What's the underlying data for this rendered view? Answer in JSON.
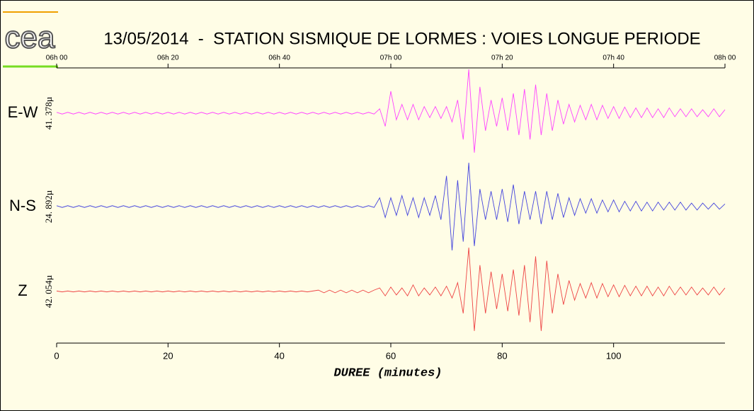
{
  "logo": "cea",
  "chart_data": {
    "type": "line",
    "title": "13/05/2014  -  STATION SISMIQUE DE LORMES : VOIES LONGUE PERIODE",
    "xlabel": "DUREE (minutes)",
    "xlim": [
      0,
      120
    ],
    "xticks": [
      0,
      20,
      40,
      60,
      80,
      100
    ],
    "x2ticks": [
      {
        "value": 0,
        "label": "06h 00"
      },
      {
        "value": 20,
        "label": "06h 20"
      },
      {
        "value": 40,
        "label": "06h 40"
      },
      {
        "value": 60,
        "label": "07h 00"
      },
      {
        "value": 80,
        "label": "07h 20"
      },
      {
        "value": 100,
        "label": "07h 40"
      },
      {
        "value": 120,
        "label": "08h 00"
      }
    ],
    "ylim": [
      -1,
      1
    ],
    "x": [
      0,
      1,
      2,
      3,
      4,
      5,
      6,
      7,
      8,
      9,
      10,
      11,
      12,
      13,
      14,
      15,
      16,
      17,
      18,
      19,
      20,
      21,
      22,
      23,
      24,
      25,
      26,
      27,
      28,
      29,
      30,
      31,
      32,
      33,
      34,
      35,
      36,
      37,
      38,
      39,
      40,
      41,
      42,
      43,
      44,
      45,
      46,
      47,
      48,
      49,
      50,
      51,
      52,
      53,
      54,
      55,
      56,
      57,
      58,
      59,
      60,
      61,
      62,
      63,
      64,
      65,
      66,
      67,
      68,
      69,
      70,
      71,
      72,
      73,
      74,
      75,
      76,
      77,
      78,
      79,
      80,
      81,
      82,
      83,
      84,
      85,
      86,
      87,
      88,
      89,
      90,
      91,
      92,
      93,
      94,
      95,
      96,
      97,
      98,
      99,
      100,
      101,
      102,
      103,
      104,
      105,
      106,
      107,
      108,
      109,
      110,
      111,
      112,
      113,
      114,
      115,
      116,
      117,
      118,
      119,
      120
    ],
    "series": [
      {
        "name": "E-W",
        "scale_label": "41. 378µ",
        "color": "#ff44ff",
        "values": [
          0.02,
          -0.02,
          0.02,
          -0.02,
          0.02,
          -0.02,
          0.02,
          -0.02,
          0.02,
          -0.02,
          0.02,
          -0.02,
          0.02,
          -0.02,
          0.02,
          -0.02,
          0.02,
          -0.02,
          0.02,
          -0.02,
          0.02,
          -0.02,
          0.02,
          -0.02,
          0.02,
          -0.02,
          0.02,
          -0.02,
          0.02,
          -0.02,
          0.02,
          -0.02,
          0.02,
          -0.02,
          0.02,
          -0.02,
          0.02,
          -0.02,
          0.02,
          -0.02,
          0.02,
          -0.02,
          0.02,
          -0.02,
          0.02,
          -0.02,
          0.02,
          -0.02,
          0.02,
          -0.02,
          0.02,
          -0.02,
          0.02,
          -0.02,
          0.02,
          -0.02,
          0.02,
          -0.02,
          0.1,
          -0.3,
          0.5,
          -0.15,
          0.2,
          -0.15,
          0.2,
          -0.15,
          0.15,
          -0.1,
          0.15,
          -0.12,
          0.15,
          -0.2,
          0.3,
          -0.6,
          1.0,
          -0.9,
          0.6,
          -0.4,
          0.3,
          -0.3,
          0.35,
          -0.4,
          0.45,
          -0.5,
          0.55,
          -0.6,
          0.65,
          -0.5,
          0.45,
          -0.4,
          0.3,
          -0.25,
          0.2,
          -0.2,
          0.18,
          -0.15,
          0.2,
          -0.15,
          0.18,
          -0.12,
          0.15,
          -0.12,
          0.14,
          -0.1,
          0.12,
          -0.1,
          0.12,
          -0.1,
          0.1,
          -0.1,
          0.12,
          -0.08,
          0.1,
          -0.08,
          0.1,
          -0.08,
          0.08,
          -0.08,
          0.1,
          -0.08,
          0.08
        ]
      },
      {
        "name": "N-S",
        "scale_label": "24. 892µ",
        "color": "#4444dd",
        "values": [
          0.02,
          -0.02,
          0.02,
          -0.02,
          0.02,
          -0.02,
          0.02,
          -0.02,
          0.02,
          -0.02,
          0.02,
          -0.02,
          0.02,
          -0.02,
          0.02,
          -0.02,
          0.02,
          -0.02,
          0.02,
          -0.02,
          0.02,
          -0.02,
          0.02,
          -0.02,
          0.02,
          -0.02,
          0.02,
          -0.02,
          0.02,
          -0.02,
          0.02,
          -0.02,
          0.02,
          -0.02,
          0.02,
          -0.02,
          0.02,
          -0.02,
          0.02,
          -0.02,
          0.02,
          -0.02,
          0.02,
          -0.02,
          0.02,
          -0.02,
          0.02,
          -0.02,
          0.02,
          -0.02,
          0.02,
          -0.02,
          0.02,
          -0.02,
          0.02,
          -0.02,
          0.02,
          -0.02,
          0.2,
          -0.25,
          0.2,
          -0.2,
          0.25,
          -0.2,
          0.2,
          -0.25,
          0.2,
          -0.2,
          0.25,
          -0.3,
          0.7,
          -1.0,
          0.6,
          -0.8,
          1.0,
          -0.9,
          0.4,
          -0.3,
          0.35,
          -0.3,
          0.4,
          -0.35,
          0.5,
          -0.4,
          0.35,
          -0.3,
          0.35,
          -0.4,
          0.35,
          -0.3,
          0.3,
          -0.25,
          0.2,
          -0.2,
          0.18,
          -0.15,
          0.18,
          -0.15,
          0.15,
          -0.12,
          0.15,
          -0.12,
          0.12,
          -0.1,
          0.12,
          -0.1,
          0.1,
          -0.1,
          0.1,
          -0.08,
          0.1,
          -0.08,
          0.1,
          -0.08,
          0.08,
          -0.08,
          0.08,
          -0.06,
          0.08,
          -0.06,
          0.06
        ]
      },
      {
        "name": "Z",
        "scale_label": "42. 054µ",
        "color": "#ee4444",
        "values": [
          0.01,
          -0.01,
          0.01,
          -0.01,
          0.01,
          -0.01,
          0.01,
          -0.01,
          0.01,
          -0.01,
          0.01,
          -0.01,
          0.01,
          -0.01,
          0.01,
          -0.01,
          0.01,
          -0.01,
          0.01,
          -0.01,
          0.01,
          -0.01,
          0.01,
          -0.01,
          0.01,
          -0.01,
          0.01,
          -0.01,
          0.01,
          -0.01,
          0.01,
          -0.01,
          0.01,
          -0.01,
          0.01,
          -0.01,
          0.01,
          -0.01,
          0.01,
          -0.01,
          0.01,
          -0.01,
          0.01,
          -0.01,
          0.01,
          -0.01,
          0.01,
          0.03,
          -0.03,
          0.03,
          -0.03,
          0.03,
          -0.03,
          0.03,
          -0.03,
          0.03,
          -0.03,
          0.03,
          0.08,
          -0.1,
          0.1,
          -0.08,
          0.08,
          -0.1,
          0.15,
          -0.1,
          0.08,
          -0.08,
          0.1,
          -0.1,
          0.12,
          -0.15,
          0.2,
          -0.5,
          1.0,
          -0.9,
          0.6,
          -0.5,
          0.45,
          -0.4,
          0.4,
          -0.45,
          0.5,
          -0.55,
          0.6,
          -0.7,
          0.8,
          -0.9,
          0.7,
          -0.5,
          0.4,
          -0.3,
          0.25,
          -0.2,
          0.18,
          -0.15,
          0.2,
          -0.15,
          0.18,
          -0.12,
          0.15,
          -0.12,
          0.14,
          -0.1,
          0.12,
          -0.1,
          0.12,
          -0.1,
          0.1,
          -0.1,
          0.12,
          -0.08,
          0.1,
          -0.08,
          0.1,
          -0.08,
          0.08,
          -0.08,
          0.1,
          -0.08,
          0.08
        ]
      }
    ]
  }
}
